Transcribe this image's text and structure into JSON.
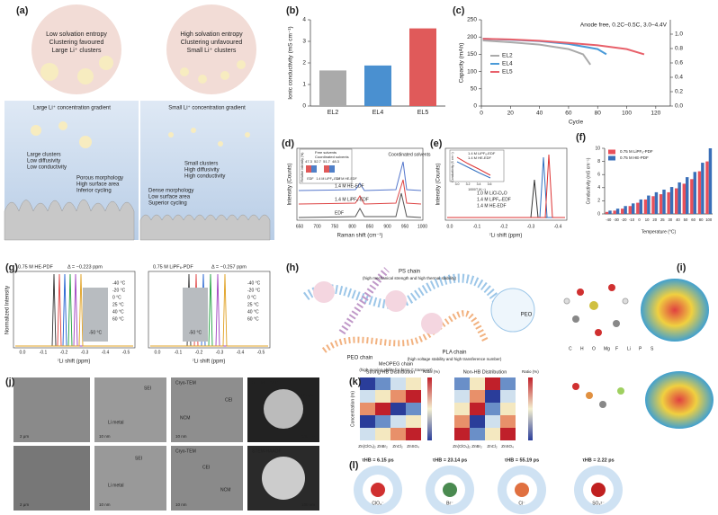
{
  "panels": {
    "labels": {
      "a": "(a)",
      "b": "(b)",
      "c": "(c)",
      "d": "(d)",
      "e": "(e)",
      "f": "(f)",
      "g": "(g)",
      "h": "(h)",
      "i": "(i)",
      "j": "(j)",
      "k": "(k)",
      "l": "(l)"
    },
    "a": {
      "left_circle": [
        "Low solvation entropy",
        "Clustering favoured",
        "Large Li⁺ clusters"
      ],
      "right_circle": [
        "High solvation entropy",
        "Clustering unfavoured",
        "Small Li⁺ clusters"
      ],
      "left_gradient": "Large Li⁺ concentration gradient",
      "right_gradient": "Small Li⁺ concentration gradient",
      "left_cluster": [
        "Large clusters",
        "Low diffusivity",
        "Low conductivity"
      ],
      "left_morph": [
        "Porous morphology",
        "High surface area",
        "Inferior cycling"
      ],
      "right_cluster": [
        "Small clusters",
        "High diffusivity",
        "High conductivity"
      ],
      "right_morph": [
        "Dense morphology",
        "Low surface area",
        "Superior cycling"
      ]
    },
    "d": {
      "ylabel": "Intensity (Counts)",
      "xlabel": "Raman shift (cm⁻¹)",
      "xticks": [
        "650",
        "700",
        "750",
        "800",
        "850",
        "900",
        "950",
        "1000"
      ],
      "traces": [
        "1.4 M HE-EDF",
        "1.4 M LiPF₆-EDF",
        "EDF"
      ],
      "note": "Coordinated solvents",
      "inset_legend": [
        "Free solvents",
        "Coordinated solvents"
      ],
      "inset_ylabel": "Relative intensity (%)",
      "inset_values": [
        "47.3",
        "52.7",
        "51.7",
        "48.3"
      ],
      "inset_groups": [
        "EDF",
        "1.4 M LiPF₆-EDF",
        "1.4 M HE-EDF"
      ]
    },
    "e": {
      "ylabel": "Intensity (Counts)",
      "xlabel": "⁷Li shift (ppm)",
      "xticks": [
        "0.0",
        "-0.1",
        "-0.2",
        "-0.3",
        "-0.4"
      ],
      "legend": [
        "1.0 M LiCl-D₂O",
        "1.4 M LiPF₆-EDF",
        "1.4 M HE-EDF"
      ],
      "inset_legend": [
        "1.4 M LiPF₆-EDF",
        "1.4 M HE-EDF"
      ],
      "inset_ylabel": "Conductivity (S cm⁻¹)",
      "inset_xlabel": "1000/T (K⁻¹)",
      "inset_xticks": [
        "3.0",
        "3.2",
        "3.4",
        "3.6"
      ]
    },
    "g": {
      "left_title": "0.75 M HE-PDF",
      "left_delta": "Δ = −0.223 ppm",
      "right_title": "0.75 M LiPF₆-PDF",
      "right_delta": "Δ = −0.257 ppm",
      "ylabel": "Normalized Intensity",
      "xlabel": "⁷Li shift (ppm)",
      "xticks": [
        "0.0",
        "-0.1",
        "-0.2",
        "-0.3",
        "-0.4",
        "-0.5"
      ],
      "temps": [
        "-40 °C",
        "-20 °C",
        "0 °C",
        "25 °C",
        "40 °C",
        "60 °C"
      ],
      "photo": "-50 °C"
    },
    "h": {
      "ps": "PS chain",
      "ps_note": "(high mechanical strength and high thermal stability)",
      "peo": "PEO chain",
      "pla": "PLA chain",
      "pla_note": "(high voltage stability and high transference number)",
      "meopeg": "MeOPEG chain",
      "meopeg_note": "(high moving ability for fast Li⁺ transport)",
      "peo_label": "PEO"
    },
    "i": {
      "legend": [
        "C",
        "H",
        "O",
        "Mg",
        "F",
        "Li",
        "P",
        "S"
      ]
    },
    "j": {
      "cryo": "Cryo-TEM",
      "stem": "STEM-HAADF",
      "li": "Li metal",
      "ncm": "NCM",
      "cei": "CEI",
      "sei": "SEI",
      "crack": "Crack",
      "scales": [
        "2 μm",
        "10 nm",
        "100 nm"
      ]
    },
    "k": {
      "left_title": "Strong HB Distribution",
      "right_title": "Non-HB Distribution",
      "ratio": "Ratio (%)",
      "ylabel": "Concentration (m)",
      "salts": [
        "Zn(ClO₄)₂",
        "ZnBr₂",
        "ZnCl₂",
        "ZnSO₄"
      ]
    },
    "l": {
      "tau": [
        "τHB = 6.15 ps",
        "τHB = 23.14 ps",
        "τHB = 55.19 ps",
        "τHB = 2.22 ps"
      ],
      "ions": [
        "ClO₄⁻",
        "Br⁻",
        "Cl⁻",
        "SO₄²⁻"
      ]
    }
  },
  "chart_data": [
    {
      "type": "bar",
      "ylabel": "Ionic conductivity (mS cm⁻¹)",
      "categories": [
        "EL2",
        "EL4",
        "EL5"
      ],
      "values": [
        1.65,
        1.88,
        3.6
      ],
      "colors": [
        "#aaaaaa",
        "#4a90d0",
        "#e05a5a"
      ],
      "ylim": [
        0,
        4
      ],
      "yticks": [
        0,
        1,
        2,
        3,
        4
      ]
    },
    {
      "type": "line",
      "title": "Anode free, 0.2C–0.5C, 3.0–4.4V",
      "xlabel": "Cycle",
      "ylabel": "Capacity (mAh)",
      "xlim": [
        0,
        130
      ],
      "xticks": [
        0,
        20,
        40,
        60,
        80,
        100,
        120
      ],
      "ylim": [
        0,
        250
      ],
      "yticks": [
        0,
        50,
        100,
        150,
        200,
        250
      ],
      "y2lim": [
        0,
        1.2
      ],
      "y2ticks": [
        {
          "value": 0,
          "label": "0.0"
        },
        {
          "value": 0.2,
          "label": "0.2"
        },
        {
          "value": 0.4,
          "label": "0.4"
        },
        {
          "value": 0.6,
          "label": "0.6"
        },
        {
          "value": 0.8,
          "label": "0.8"
        },
        {
          "value": 1,
          "label": "1.0"
        }
      ],
      "legend": "center left",
      "series": [
        {
          "name": "EL2",
          "color": "#aaaaaa",
          "x": [
            1,
            20,
            40,
            60,
            70,
            75
          ],
          "values": [
            190,
            185,
            178,
            165,
            150,
            120
          ]
        },
        {
          "name": "EL4",
          "color": "#4a9ad8",
          "x": [
            1,
            20,
            40,
            60,
            80,
            86
          ],
          "values": [
            195,
            192,
            188,
            180,
            165,
            150
          ]
        },
        {
          "name": "EL5",
          "color": "#e8606a",
          "x": [
            1,
            20,
            40,
            60,
            80,
            100,
            112
          ],
          "values": [
            195,
            193,
            189,
            183,
            176,
            165,
            150
          ]
        }
      ]
    },
    {
      "type": "bar",
      "xlabel": "Temperature (°C)",
      "ylabel": "Conductivity (mS cm⁻¹)",
      "legend": "upper left",
      "categories": [
        "-40",
        "-30",
        "-20",
        "-10",
        "0",
        "10",
        "20",
        "25",
        "30",
        "40",
        "50",
        "60",
        "80",
        "100"
      ],
      "ylim": [
        0,
        10
      ],
      "yticks": [
        0,
        2,
        4,
        6,
        8,
        10
      ],
      "series": [
        {
          "name": "0.75 M LiPF₆-PDF",
          "color": "#e8505a",
          "values": [
            0.3,
            0.5,
            0.8,
            1.2,
            1.7,
            2.2,
            2.7,
            3.0,
            3.3,
            3.9,
            4.6,
            5.3,
            6.5,
            8.0
          ]
        },
        {
          "name": "0.75 M HE-PDF",
          "color": "#3a6fb8",
          "values": [
            0.5,
            0.8,
            1.2,
            1.6,
            2.2,
            2.8,
            3.3,
            3.7,
            4.1,
            4.8,
            5.6,
            6.4,
            7.8,
            10.0
          ]
        }
      ]
    }
  ]
}
